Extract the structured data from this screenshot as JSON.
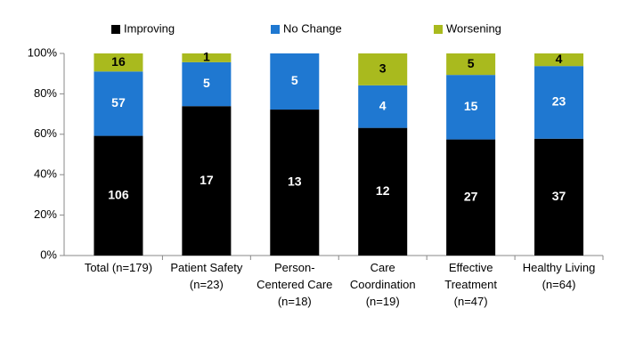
{
  "chart_data": {
    "type": "bar",
    "stack": "percent",
    "categories": [
      [
        "Total (n=179)"
      ],
      [
        "Patient Safety",
        "(n=23)"
      ],
      [
        "Person-",
        "Centered Care",
        "(n=18)"
      ],
      [
        "Care",
        "Coordination",
        "(n=19)"
      ],
      [
        "Effective",
        "Treatment",
        "(n=47)"
      ],
      [
        "Healthy Living",
        "(n=64)"
      ]
    ],
    "series": [
      {
        "name": "Improving",
        "color": "#000000",
        "label_color": "#ffffff",
        "values": [
          106,
          17,
          13,
          12,
          27,
          37
        ]
      },
      {
        "name": "No Change",
        "color": "#1f78d1",
        "label_color": "#ffffff",
        "values": [
          57,
          5,
          5,
          4,
          15,
          23
        ]
      },
      {
        "name": "Worsening",
        "color": "#a9ba1e",
        "label_color": "#000000",
        "values": [
          16,
          1,
          0,
          3,
          5,
          4
        ]
      }
    ],
    "ylim": [
      0,
      100
    ],
    "yticks": [
      {
        "value": 0,
        "label": "0%"
      },
      {
        "value": 20,
        "label": "20%"
      },
      {
        "value": 40,
        "label": "40%"
      },
      {
        "value": 60,
        "label": "60%"
      },
      {
        "value": 80,
        "label": "80%"
      },
      {
        "value": 100,
        "label": "100%"
      }
    ],
    "legend": "top"
  }
}
